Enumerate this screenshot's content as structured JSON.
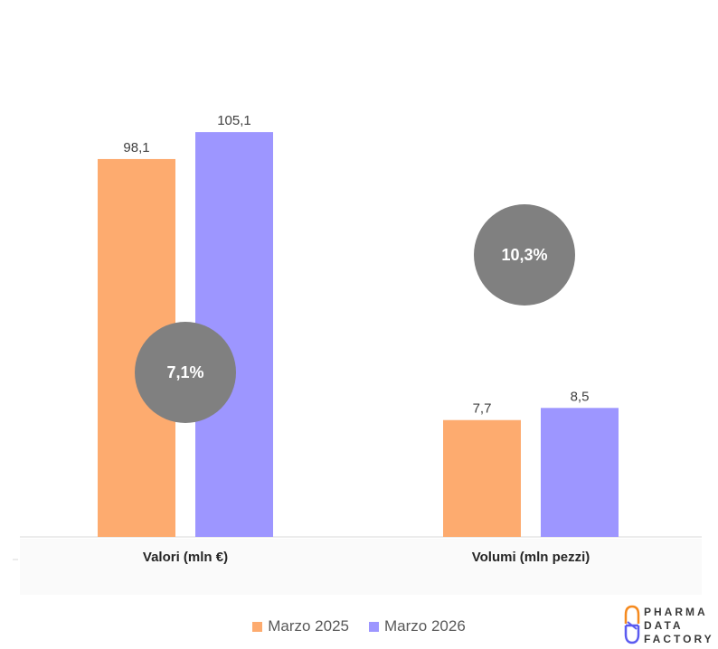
{
  "chart_data": {
    "type": "bar",
    "categories": [
      "Valori (mln €)",
      "Volumi (mln pezzi)"
    ],
    "series": [
      {
        "name": "Marzo 2025",
        "color": "#FDAB6F",
        "values": [
          98.1,
          7.7
        ],
        "labels": [
          "98,1",
          "7,7"
        ]
      },
      {
        "name": "Marzo 2026",
        "color": "#9D96FF",
        "values": [
          105.1,
          8.5
        ],
        "labels": [
          "105,1",
          "8,5"
        ]
      }
    ],
    "value_axis_scales": [
      [
        0,
        130
      ],
      [
        0,
        33
      ]
    ],
    "growth_bubbles": [
      {
        "category": "Valori (mln €)",
        "label": "7,1%",
        "color": "#808080"
      },
      {
        "category": "Volumi (mln pezzi)",
        "label": "10,3%",
        "color": "#808080"
      }
    ],
    "legend_position": "bottom",
    "grid": false
  },
  "logo": {
    "lines": [
      "PHARMA",
      "DATA",
      "FACTORY"
    ]
  }
}
